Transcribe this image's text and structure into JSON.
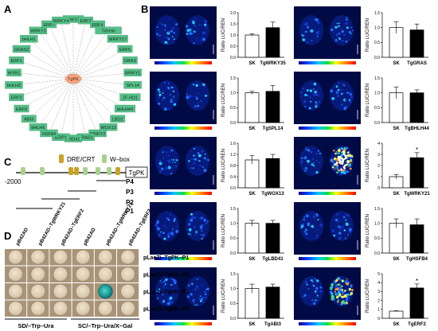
{
  "panels": {
    "A": {
      "letter": "A",
      "center": "TgPK",
      "nodes": [
        "WRKY32",
        "ERF3",
        "ERF4",
        "Trihelix",
        "WRKY17",
        "ERF5",
        "GRAS",
        "WRKY1",
        "SPL14",
        "ZF-HD1",
        "bHLH44",
        "LBD2",
        "WOX13",
        "WRKY2",
        "GRAS1",
        "LBD41",
        "BZIP1",
        "HSF84",
        "bHLH6",
        "ABI3",
        "ERF6",
        "ERF2",
        "bHLH3",
        "MYB1",
        "ERF1",
        "GRAS2",
        "bHLH1",
        "WRKY3",
        "ERF7",
        "WRKY4"
      ]
    },
    "B": {
      "letter": "B"
    },
    "C": {
      "letter": "C",
      "legend_dre": "DRE/CRT",
      "legend_w": "W–box",
      "gene": "TgPK",
      "start": "-2000",
      "fragments": [
        "P4",
        "P3",
        "P2",
        "P1"
      ]
    },
    "D": {
      "letter": "D",
      "cols": [
        "pB42AD",
        "pB42AD–TgWRKY21",
        "pB42AD–TgERF2",
        "pB42AD",
        "pB42AD–TgWRKY21",
        "pB42AD–TgERF2"
      ],
      "rows": [
        "pLacZi–TgPK–P1",
        "pLacZi–TgPK–P2",
        "pLacZi–TgPK–P3",
        "pLacZi–TgPK–P4"
      ],
      "media_left": "SD/–Trp–Ura",
      "media_right": "SC/–Trp–Ura/X–Gal"
    }
  },
  "chart_data": [
    {
      "type": "bar",
      "categories": [
        "SK",
        "TgWRKY35"
      ],
      "values": [
        1.0,
        1.33
      ],
      "errors": [
        0.05,
        0.25
      ],
      "ylabel": "Ratio LUC/REN",
      "ylim": [
        0,
        2
      ],
      "ticks": [
        "0.0",
        "0.5",
        "1.0",
        "1.5",
        "2.0"
      ],
      "sig": false
    },
    {
      "type": "bar",
      "categories": [
        "SK",
        "TgGRAS"
      ],
      "values": [
        1.0,
        0.92
      ],
      "errors": [
        0.2,
        0.2
      ],
      "ylabel": "Ratio LUC/REN",
      "ylim": [
        0,
        1.5
      ],
      "ticks": [
        "0.0",
        "0.5",
        "1.0",
        "1.5"
      ],
      "sig": false
    },
    {
      "type": "bar",
      "categories": [
        "SK",
        "TgSPL14"
      ],
      "values": [
        1.0,
        1.05
      ],
      "errors": [
        0.05,
        0.2
      ],
      "ylabel": "Ratio LUC/REN",
      "ylim": [
        0,
        1.5
      ],
      "ticks": [
        "0.0",
        "0.5",
        "1.0",
        "1.5"
      ],
      "sig": false
    },
    {
      "type": "bar",
      "categories": [
        "SK",
        "TgBHLH44"
      ],
      "values": [
        1.0,
        1.0
      ],
      "errors": [
        0.2,
        0.1
      ],
      "ylabel": "Ratio LUC/REN",
      "ylim": [
        0,
        1.5
      ],
      "ticks": [
        "0.0",
        "0.5",
        "1.0",
        "1.5"
      ],
      "sig": false
    },
    {
      "type": "bar",
      "categories": [
        "SK",
        "TgWOX13"
      ],
      "values": [
        1.0,
        1.05
      ],
      "errors": [
        0.15,
        0.15
      ],
      "ylabel": "Ratio LUC/REN",
      "ylim": [
        0,
        1.6
      ],
      "ticks": [
        "0.0",
        "0.4",
        "0.8",
        "1.2",
        "1.6"
      ],
      "sig": false
    },
    {
      "type": "bar",
      "categories": [
        "SK",
        "TgWRKY21"
      ],
      "values": [
        1.0,
        2.7
      ],
      "errors": [
        0.2,
        0.45
      ],
      "ylabel": "Ratio LUC/REN",
      "ylim": [
        0,
        4
      ],
      "ticks": [
        "0",
        "1",
        "2",
        "3",
        "4"
      ],
      "sig": true
    },
    {
      "type": "bar",
      "categories": [
        "SK",
        "TgLBD41"
      ],
      "values": [
        1.0,
        1.0
      ],
      "errors": [
        0.1,
        0.1
      ],
      "ylabel": "Ratio LUC/REN",
      "ylim": [
        0,
        1.5
      ],
      "ticks": [
        "0.0",
        "0.5",
        "1.0",
        "1.5"
      ],
      "sig": false
    },
    {
      "type": "bar",
      "categories": [
        "SK",
        "TgHSFB4"
      ],
      "values": [
        1.0,
        0.95
      ],
      "errors": [
        0.15,
        0.2
      ],
      "ylabel": "Ratio LUC/REN",
      "ylim": [
        0,
        1.5
      ],
      "ticks": [
        "0.0",
        "0.5",
        "1.0",
        "1.5"
      ],
      "sig": false
    },
    {
      "type": "bar",
      "categories": [
        "SK",
        "TgABI3"
      ],
      "values": [
        1.0,
        1.05
      ],
      "errors": [
        0.15,
        0.1
      ],
      "ylabel": "Ratio LUC/REN",
      "ylim": [
        0,
        1.5
      ],
      "ticks": [
        "0.0",
        "0.5",
        "1.0",
        "1.5"
      ],
      "sig": false
    },
    {
      "type": "bar",
      "categories": [
        "SK",
        "TgERF2"
      ],
      "values": [
        0.8,
        3.4
      ],
      "errors": [
        0.05,
        0.45
      ],
      "ylabel": "Ratio LUC/REN",
      "ylim": [
        0,
        5
      ],
      "ticks": [
        "0",
        "1",
        "2",
        "3",
        "4",
        "5"
      ],
      "sig": true
    }
  ],
  "colors": {
    "node_fill": "#57c08a",
    "center_fill": "#f4a582",
    "gold": "#c9a227",
    "lightgreen": "#a9d18e",
    "x_gal_blue": "#1ca2a2",
    "plate": "#b9a48a"
  }
}
